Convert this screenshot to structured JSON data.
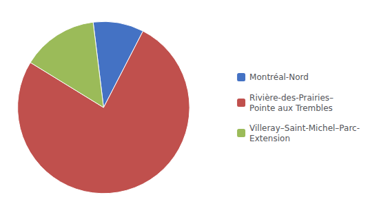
{
  "chart_data": {
    "type": "pie",
    "categories": [
      "Montréal-Nord",
      "Rivière-des-Prairies–\nPointe aux Trembles",
      "Villeray–Saint-Michel–Parc-\nExtension"
    ],
    "values": [
      2,
      16,
      3
    ],
    "colors": [
      "#4472C4",
      "#C0504D",
      "#9BBB59"
    ],
    "legend": "right"
  }
}
